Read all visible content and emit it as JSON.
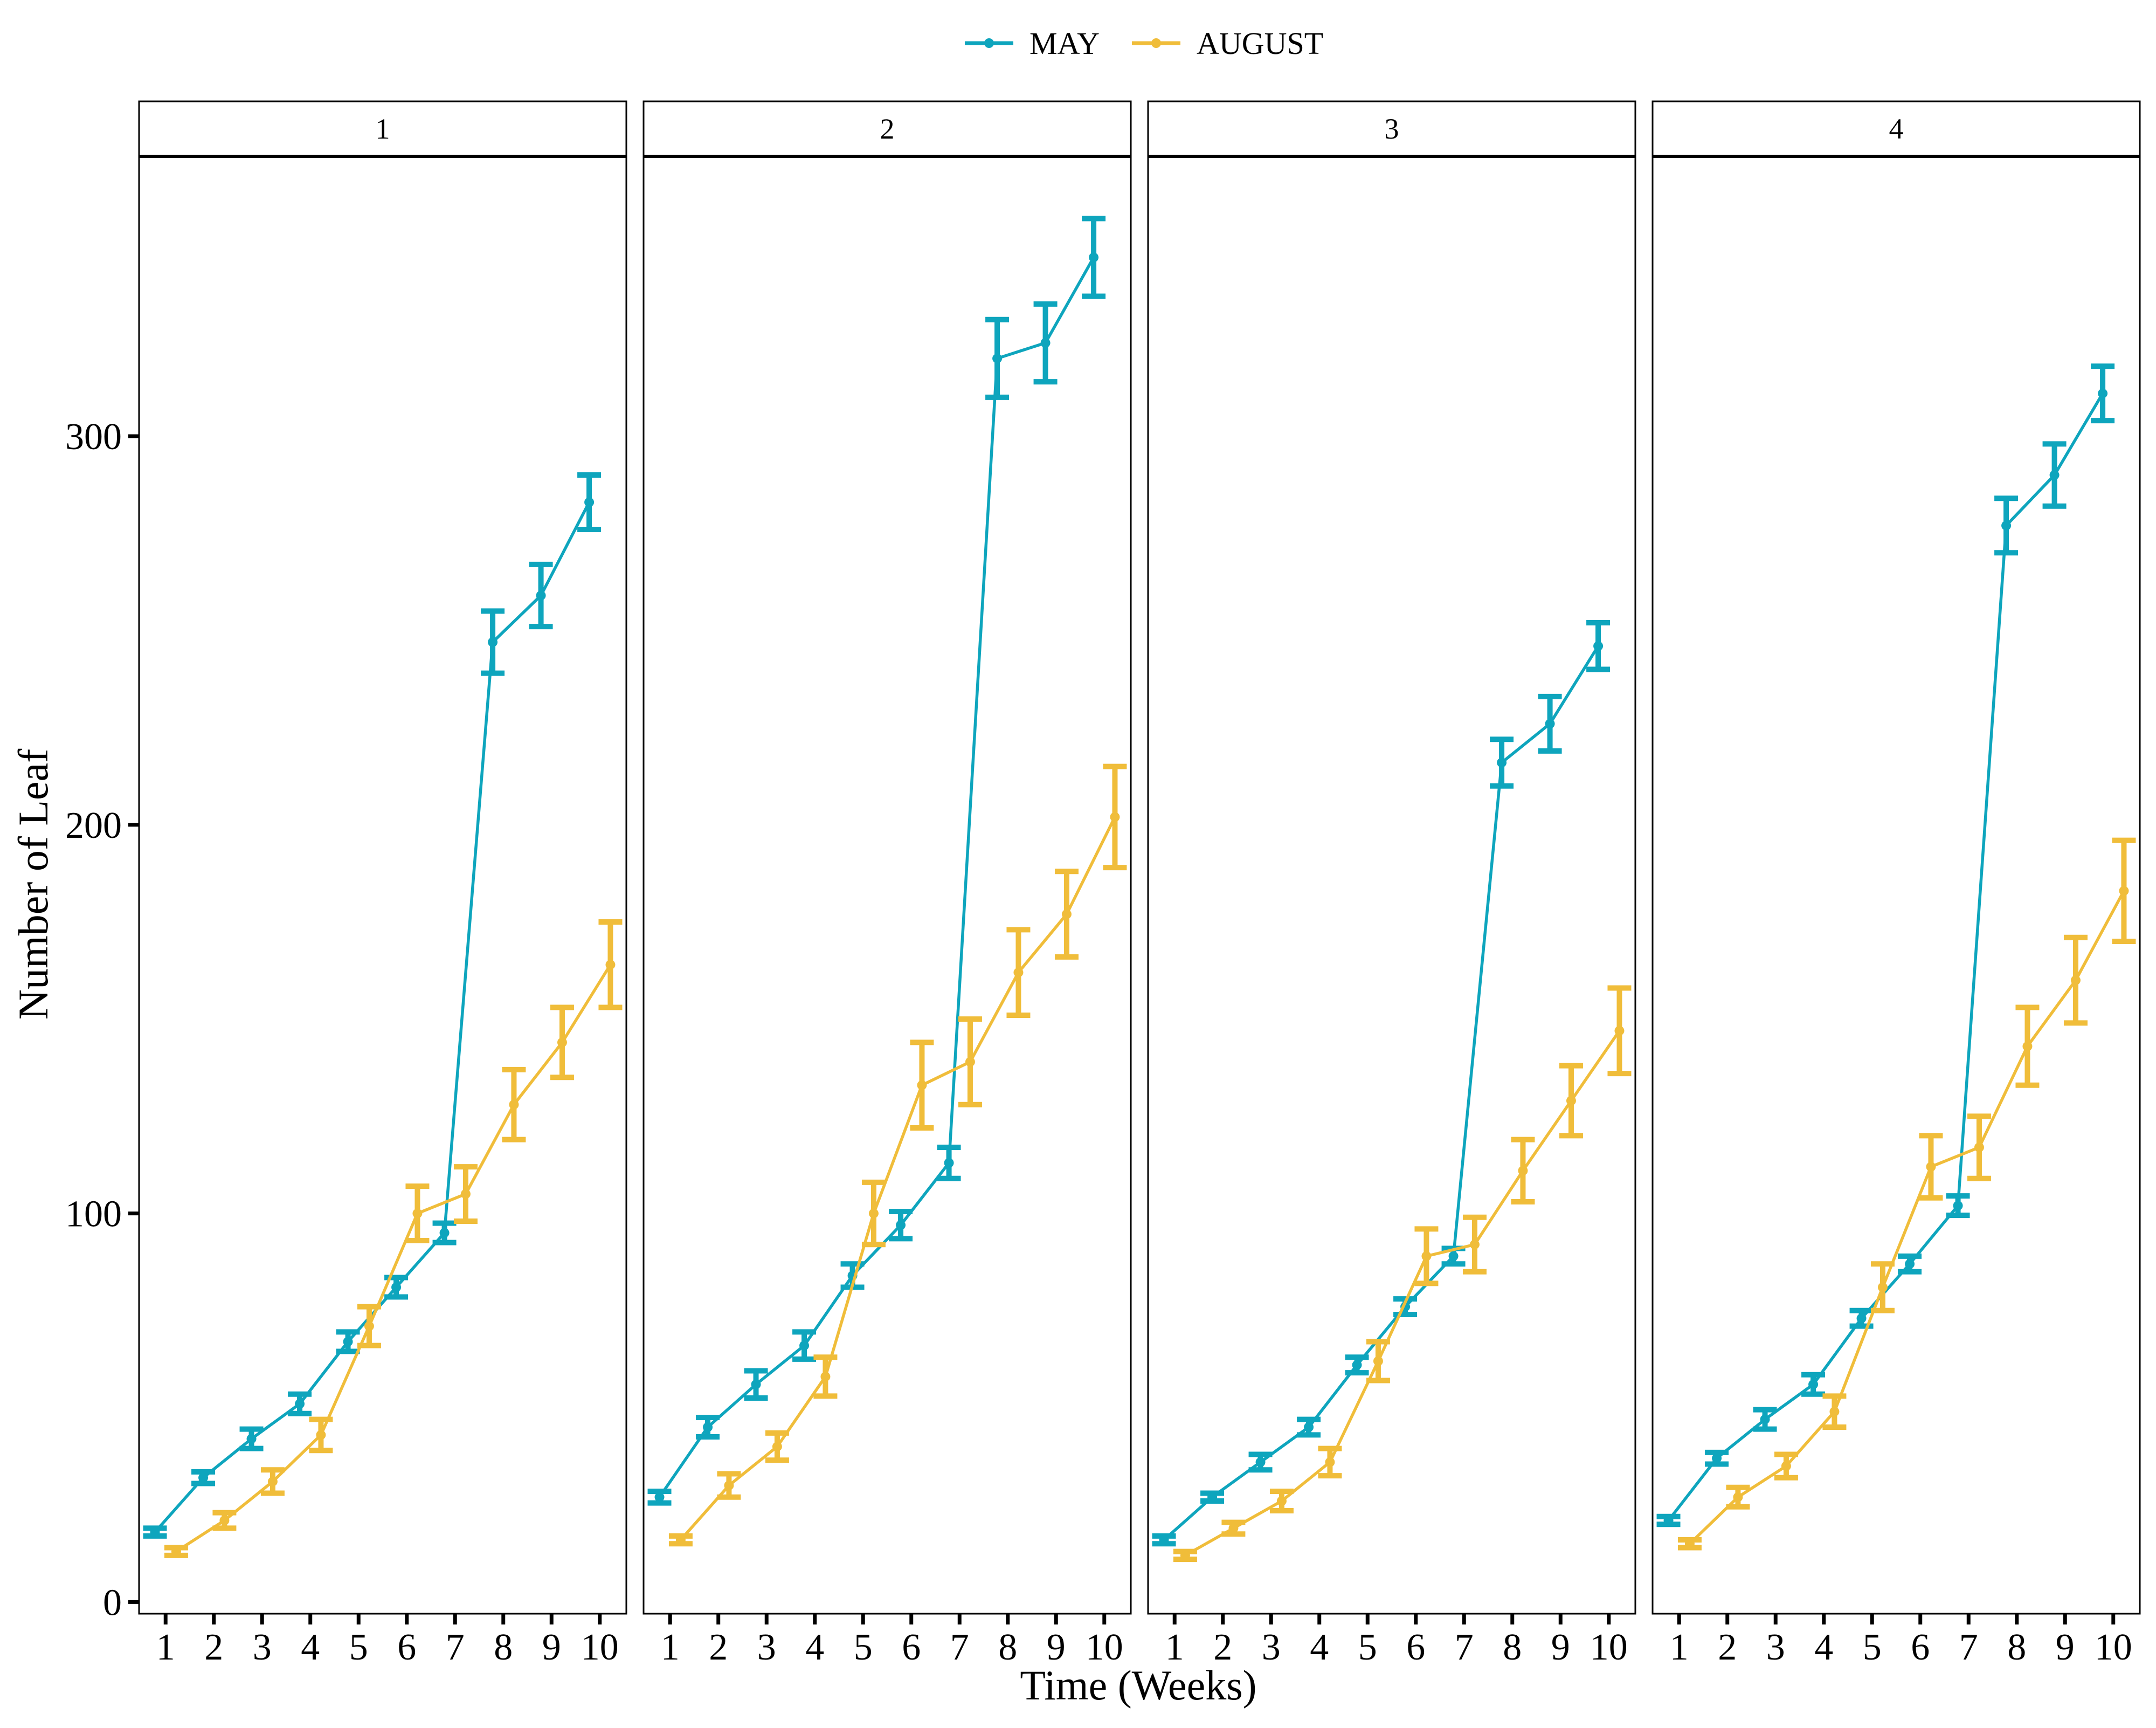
{
  "chart_data": {
    "type": "line",
    "xlabel": "Time (Weeks)",
    "ylabel": "Number of Leaf",
    "x": [
      1,
      2,
      3,
      4,
      5,
      6,
      7,
      8,
      9,
      10
    ],
    "ylim": [
      -3,
      372
    ],
    "yticks": [
      0,
      100,
      200,
      300
    ],
    "legend_position": "top",
    "grid": false,
    "error_bars": true,
    "series_colors": {
      "MAY": "#0ea5bd",
      "AUGUST": "#f0bd3a"
    },
    "legend": [
      "MAY",
      "AUGUST"
    ],
    "panels": [
      {
        "label": "1",
        "series": [
          {
            "name": "MAY",
            "values": [
              18,
              32,
              42,
              51,
              67,
              81,
              95,
              247,
              259,
              283
            ],
            "errors": [
              1,
              1.5,
              2.5,
              2.5,
              2.5,
              2.5,
              2.5,
              8,
              8,
              7
            ]
          },
          {
            "name": "AUGUST",
            "values": [
              13,
              21,
              31,
              43,
              71,
              100,
              105,
              128,
              144,
              164
            ],
            "errors": [
              1,
              2,
              3,
              4,
              5,
              7,
              7,
              9,
              9,
              11
            ]
          }
        ]
      },
      {
        "label": "2",
        "series": [
          {
            "name": "MAY",
            "values": [
              27,
              45,
              56,
              66,
              84,
              97,
              113,
              320,
              324,
              346
            ],
            "errors": [
              1.5,
              2.5,
              3.5,
              3.5,
              3,
              3.5,
              4,
              10,
              10,
              10
            ]
          },
          {
            "name": "AUGUST",
            "values": [
              16,
              30,
              40,
              58,
              100,
              133,
              139,
              162,
              177,
              202
            ],
            "errors": [
              1,
              3,
              3.5,
              5,
              8,
              11,
              11,
              11,
              11,
              13
            ]
          }
        ]
      },
      {
        "label": "3",
        "series": [
          {
            "name": "MAY",
            "values": [
              16,
              27,
              36,
              45,
              61,
              76,
              89,
              216,
              226,
              246
            ],
            "errors": [
              1,
              1,
              2,
              2,
              2,
              2,
              2,
              6,
              7,
              6
            ]
          },
          {
            "name": "AUGUST",
            "values": [
              12,
              19,
              26,
              36,
              62,
              89,
              92,
              111,
              129,
              147
            ],
            "errors": [
              1,
              1.5,
              2.5,
              3.5,
              5,
              7,
              7,
              8,
              9,
              11
            ]
          }
        ]
      },
      {
        "label": "4",
        "series": [
          {
            "name": "MAY",
            "values": [
              21,
              37,
              47,
              56,
              73,
              87,
              102,
              277,
              290,
              311
            ],
            "errors": [
              1,
              1.5,
              2.5,
              2.5,
              2,
              2,
              2.5,
              7,
              8,
              7
            ]
          },
          {
            "name": "AUGUST",
            "values": [
              15,
              27,
              35,
              49,
              81,
              112,
              117,
              143,
              160,
              183
            ],
            "errors": [
              1,
              2.5,
              3,
              4,
              6,
              8,
              8,
              10,
              11,
              13
            ]
          }
        ]
      }
    ]
  }
}
